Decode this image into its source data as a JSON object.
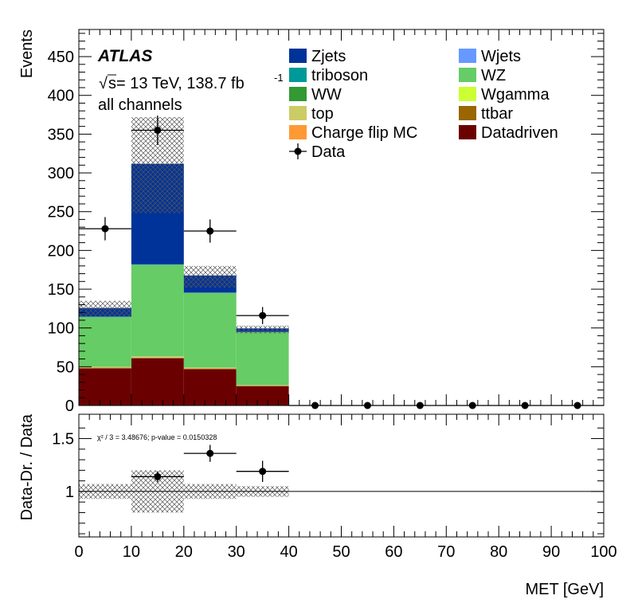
{
  "chart_data": {
    "type": "bar",
    "stacked": true,
    "x_bin_edges": [
      0,
      10,
      20,
      30,
      40,
      50,
      60,
      70,
      80,
      90,
      100
    ],
    "xlabel": "MET [GeV]",
    "ylabel": "Events",
    "xlim": [
      0,
      100
    ],
    "ylim": [
      0,
      485
    ],
    "x_ticks": [
      "0",
      "10",
      "20",
      "30",
      "40",
      "50",
      "60",
      "70",
      "80",
      "90",
      "100"
    ],
    "y_ticks": [
      "0",
      "50",
      "100",
      "150",
      "200",
      "250",
      "300",
      "350",
      "400",
      "450"
    ],
    "annotations": {
      "experiment": "ATLAS",
      "energy_prefix": "s",
      "energy_text": " = 13 TeV, 138.7 fb",
      "energy_sup": "-1",
      "channel": "all channels"
    },
    "series": [
      {
        "name": "Datadriven",
        "color": "#6b0000",
        "values": [
          48,
          61,
          47,
          25,
          0,
          0,
          0,
          0,
          0,
          0
        ]
      },
      {
        "name": "Charge flip MC",
        "color": "#ff9933",
        "values": [
          0.5,
          0.5,
          0.5,
          0.4,
          0,
          0,
          0,
          0,
          0,
          0
        ]
      },
      {
        "name": "ttbar",
        "color": "#996600",
        "values": [
          0.3,
          0.3,
          0.3,
          0.2,
          0,
          0,
          0,
          0,
          0,
          0
        ]
      },
      {
        "name": "top",
        "color": "#cccc66",
        "values": [
          0.8,
          1.2,
          0.8,
          0.6,
          0,
          0,
          0,
          0,
          0,
          0
        ]
      },
      {
        "name": "Wgamma",
        "color": "#ccff33",
        "values": [
          0.2,
          0.2,
          0.2,
          0.1,
          0,
          0,
          0,
          0,
          0,
          0
        ]
      },
      {
        "name": "WW",
        "color": "#339933",
        "values": [
          0.3,
          0.3,
          0.3,
          0.2,
          0,
          0,
          0,
          0,
          0,
          0
        ]
      },
      {
        "name": "WZ",
        "color": "#66cc66",
        "values": [
          64,
          118,
          96,
          68,
          0,
          0,
          0,
          0,
          0,
          0
        ]
      },
      {
        "name": "triboson",
        "color": "#009999",
        "values": [
          0.3,
          0.3,
          0.3,
          0.2,
          0,
          0,
          0,
          0,
          0,
          0
        ]
      },
      {
        "name": "Wjets",
        "color": "#6699ff",
        "values": [
          0.2,
          0.2,
          0.2,
          0.1,
          0,
          0,
          0,
          0,
          0,
          0
        ]
      },
      {
        "name": "Zjets",
        "color": "#003399",
        "values": [
          10.4,
          129,
          21.4,
          3.9,
          0,
          0,
          0,
          0,
          0,
          0
        ]
      }
    ],
    "legend": [
      {
        "name": "Zjets",
        "color": "#003399",
        "kind": "box"
      },
      {
        "name": "Wjets",
        "color": "#6699ff",
        "kind": "box"
      },
      {
        "name": "triboson",
        "color": "#009999",
        "kind": "box"
      },
      {
        "name": "WZ",
        "color": "#66cc66",
        "kind": "box"
      },
      {
        "name": "WW",
        "color": "#339933",
        "kind": "box"
      },
      {
        "name": "Wgamma",
        "color": "#ccff33",
        "kind": "box"
      },
      {
        "name": "top",
        "color": "#cccc66",
        "kind": "box"
      },
      {
        "name": "ttbar",
        "color": "#996600",
        "kind": "box"
      },
      {
        "name": "Charge flip MC",
        "color": "#ff9933",
        "kind": "box"
      },
      {
        "name": "Datadriven",
        "color": "#6b0000",
        "kind": "box"
      },
      {
        "name": "Data",
        "color": "#000000",
        "kind": "marker"
      }
    ],
    "uncertainty_band": {
      "low": [
        115,
        248,
        152,
        93,
        0,
        0,
        0,
        0,
        0,
        0
      ],
      "high": [
        135,
        372,
        180,
        103,
        0,
        0,
        0,
        0,
        0,
        0
      ]
    },
    "data_points": {
      "x": [
        5,
        15,
        25,
        35,
        45,
        55,
        65,
        75,
        85,
        95
      ],
      "y": [
        228,
        355,
        225,
        116,
        0,
        0,
        0,
        0,
        0,
        0
      ],
      "yerr": [
        15,
        19,
        15,
        11,
        0,
        0,
        0,
        0,
        0,
        0
      ],
      "xerr": 5
    },
    "ratio_panel": {
      "ylabel": "Data-Dr. / Data",
      "ylim": [
        0.57,
        1.73
      ],
      "y_ticks": [
        "1",
        "1.5"
      ],
      "reference": 1,
      "stat_label": "χ² / 3 = 3.48676; p-value = 0.0150328",
      "points": {
        "x": [
          15,
          25,
          35
        ],
        "y": [
          1.14,
          1.36,
          1.19
        ],
        "yerr": [
          0.05,
          0.08,
          0.1
        ]
      },
      "band": {
        "low": [
          0.93,
          0.8,
          0.93,
          0.95
        ],
        "high": [
          1.07,
          1.2,
          1.07,
          1.05
        ]
      }
    }
  }
}
